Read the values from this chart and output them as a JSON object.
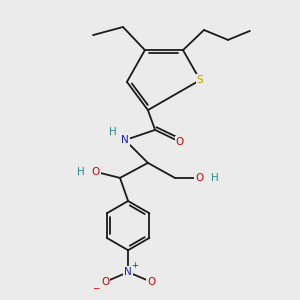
{
  "bg_color": "#ebebeb",
  "bond_color": "#1a1a1a",
  "bond_lw": 1.3,
  "atom_colors": {
    "S": "#b8a000",
    "N": "#1a1acc",
    "O": "#cc0000",
    "H": "#2a8888",
    "C": "#1a1a1a"
  },
  "fs": 7.5,
  "xlim": [
    0,
    10
  ],
  "ylim": [
    0,
    10
  ],
  "figsize": [
    3.0,
    3.0
  ],
  "dpi": 100
}
